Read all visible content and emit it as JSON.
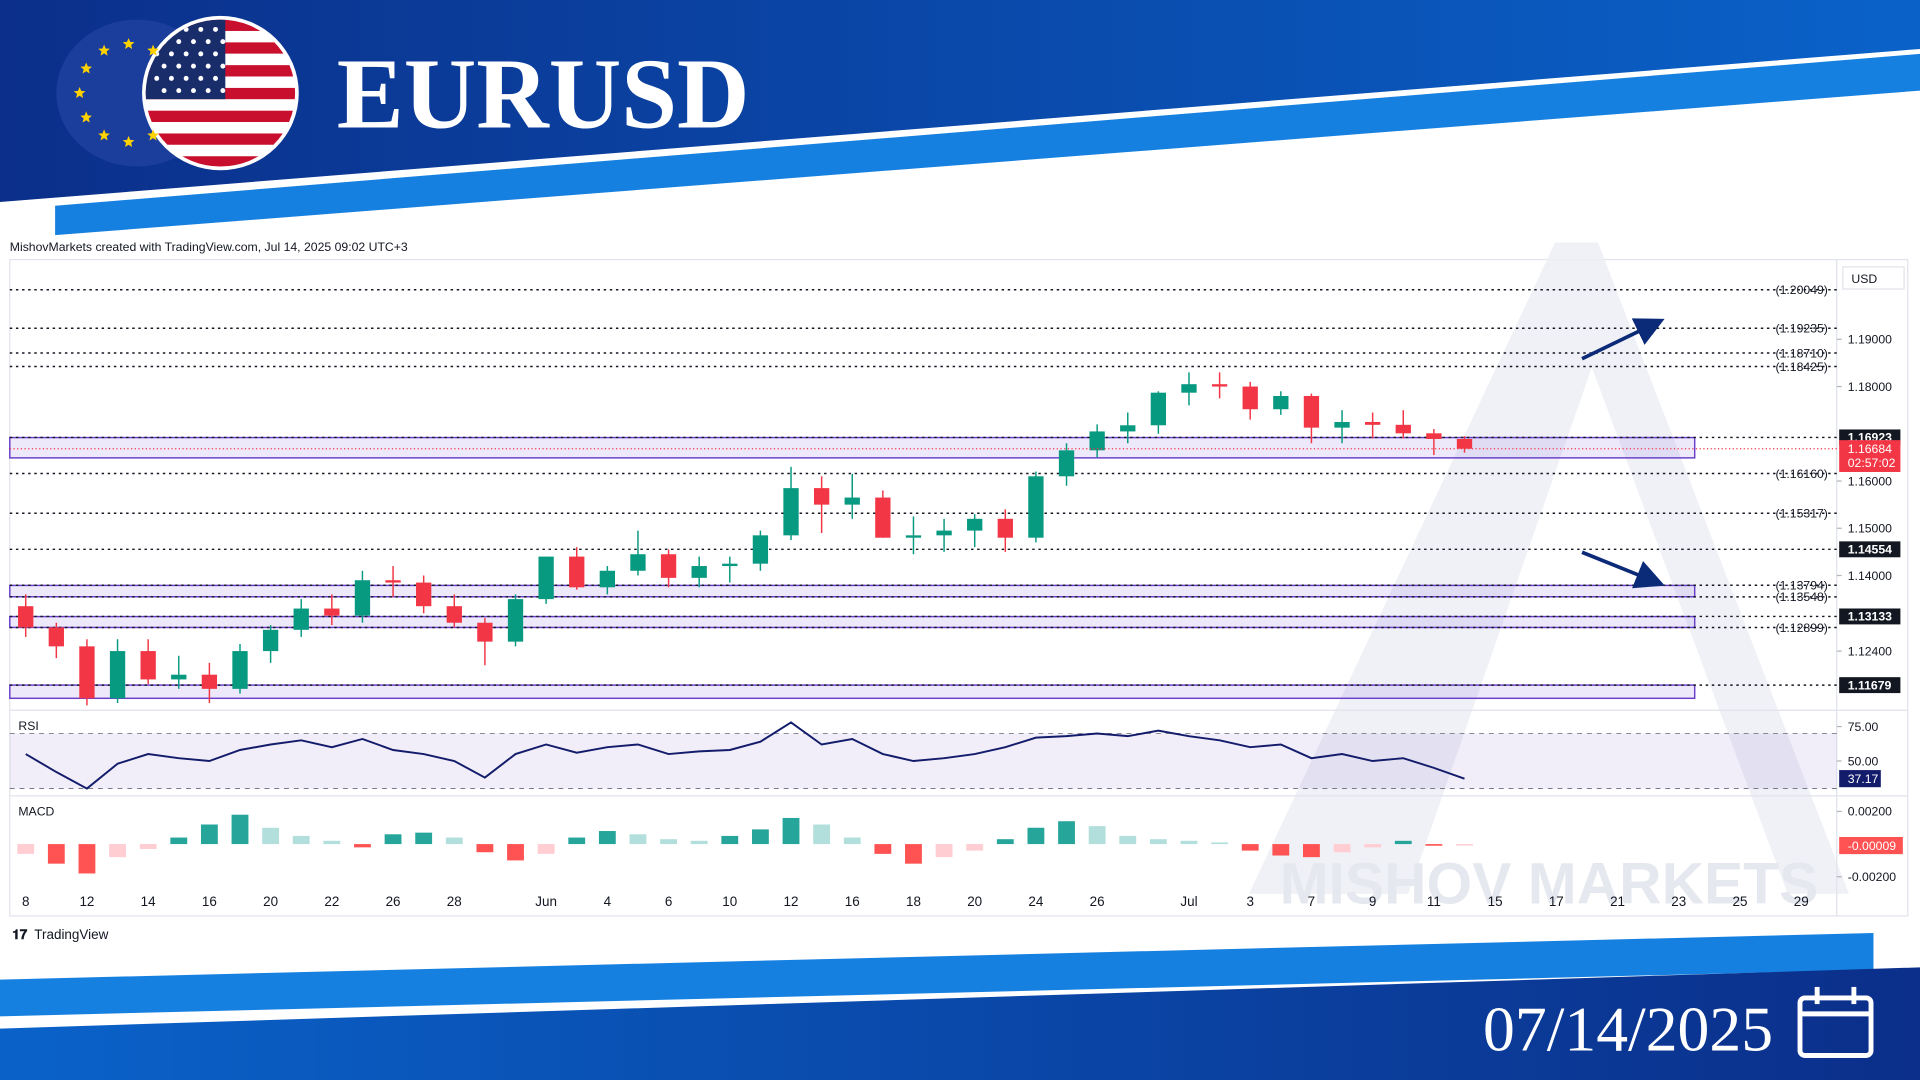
{
  "header": {
    "title": "EURUSD"
  },
  "attribution": "MishovMarkets created with TradingView.com, Jul 14, 2025 09:02 UTC+3",
  "watermark": "MISHOV MARKETS",
  "brand": "TradingView",
  "date": "07/14/2025",
  "chart_data": [
    {
      "type": "candlestick",
      "currency": "USD",
      "x": [
        0,
        1,
        2,
        3,
        4,
        5,
        6,
        7,
        8,
        9,
        10,
        11,
        12,
        13,
        14,
        15,
        16,
        17,
        18,
        19,
        20,
        21,
        22,
        23,
        24,
        25,
        26,
        27,
        28,
        29,
        30,
        31,
        32,
        33,
        34,
        35,
        36,
        37,
        38,
        39,
        40,
        41,
        42,
        43,
        44,
        45,
        46,
        47
      ],
      "open": [
        1.1335,
        1.129,
        1.125,
        1.114,
        1.124,
        1.118,
        1.119,
        1.116,
        1.124,
        1.1285,
        1.133,
        1.1315,
        1.139,
        1.1385,
        1.1335,
        1.13,
        1.126,
        1.135,
        1.144,
        1.1375,
        1.141,
        1.1445,
        1.1395,
        1.142,
        1.1425,
        1.1485,
        1.1585,
        1.155,
        1.1565,
        1.148,
        1.1485,
        1.1495,
        1.152,
        1.148,
        1.161,
        1.1665,
        1.1705,
        1.1718,
        1.1787,
        1.1805,
        1.18,
        1.1752,
        1.178,
        1.1713,
        1.1725,
        1.1719,
        1.1701,
        1.1689
      ],
      "high": [
        1.136,
        1.13,
        1.1265,
        1.1265,
        1.1265,
        1.123,
        1.1215,
        1.1255,
        1.1295,
        1.135,
        1.136,
        1.141,
        1.142,
        1.14,
        1.136,
        1.131,
        1.136,
        1.144,
        1.146,
        1.142,
        1.1495,
        1.1455,
        1.144,
        1.144,
        1.1495,
        1.163,
        1.161,
        1.1615,
        1.158,
        1.1525,
        1.152,
        1.153,
        1.154,
        1.162,
        1.168,
        1.172,
        1.1745,
        1.179,
        1.183,
        1.183,
        1.181,
        1.179,
        1.1785,
        1.175,
        1.1745,
        1.175,
        1.171,
        1.1695
      ],
      "low": [
        1.127,
        1.1225,
        1.1125,
        1.113,
        1.117,
        1.116,
        1.113,
        1.115,
        1.1215,
        1.127,
        1.1295,
        1.13,
        1.1355,
        1.132,
        1.129,
        1.121,
        1.125,
        1.134,
        1.137,
        1.136,
        1.14,
        1.1375,
        1.1375,
        1.1385,
        1.141,
        1.1475,
        1.149,
        1.152,
        1.148,
        1.1445,
        1.145,
        1.146,
        1.145,
        1.147,
        1.159,
        1.165,
        1.168,
        1.17,
        1.176,
        1.1775,
        1.173,
        1.174,
        1.168,
        1.168,
        1.169,
        1.169,
        1.1655,
        1.166
      ],
      "close": [
        1.129,
        1.125,
        1.114,
        1.124,
        1.118,
        1.119,
        1.116,
        1.124,
        1.1285,
        1.133,
        1.1315,
        1.139,
        1.1385,
        1.1335,
        1.13,
        1.126,
        1.135,
        1.144,
        1.1375,
        1.141,
        1.1445,
        1.1395,
        1.142,
        1.1425,
        1.1485,
        1.1585,
        1.155,
        1.1565,
        1.148,
        1.1485,
        1.1495,
        1.152,
        1.148,
        1.161,
        1.1665,
        1.1705,
        1.1718,
        1.1787,
        1.1805,
        1.18,
        1.1752,
        1.178,
        1.1713,
        1.1725,
        1.1719,
        1.1701,
        1.1689,
        1.16684
      ],
      "up_color": "#089981",
      "down_color": "#f23645",
      "xlim": [
        -0.52,
        59.16
      ],
      "xticks": [
        {
          "value": 0,
          "label": "8"
        },
        {
          "value": 2,
          "label": "12"
        },
        {
          "value": 4,
          "label": "14"
        },
        {
          "value": 6,
          "label": "16"
        },
        {
          "value": 8,
          "label": "20"
        },
        {
          "value": 10,
          "label": "22"
        },
        {
          "value": 12,
          "label": "26"
        },
        {
          "value": 14,
          "label": "28"
        },
        {
          "value": 17,
          "label": "Jun"
        },
        {
          "value": 19,
          "label": "4"
        },
        {
          "value": 21,
          "label": "6"
        },
        {
          "value": 23,
          "label": "10"
        },
        {
          "value": 25,
          "label": "12"
        },
        {
          "value": 27,
          "label": "16"
        },
        {
          "value": 29,
          "label": "18"
        },
        {
          "value": 31,
          "label": "20"
        },
        {
          "value": 33,
          "label": "24"
        },
        {
          "value": 35,
          "label": "26"
        },
        {
          "value": 38,
          "label": "Jul"
        },
        {
          "value": 40,
          "label": "3"
        },
        {
          "value": 42,
          "label": "7"
        },
        {
          "value": 44,
          "label": "9"
        },
        {
          "value": 46,
          "label": "11"
        },
        {
          "value": 48,
          "label": "15"
        },
        {
          "value": 50,
          "label": "17"
        },
        {
          "value": 52,
          "label": "21"
        },
        {
          "value": 54,
          "label": "23"
        },
        {
          "value": 56,
          "label": "25"
        },
        {
          "value": 58,
          "label": "29"
        }
      ],
      "ylim": [
        1.112,
        1.2061
      ],
      "yticks": [
        {
          "value": 1.124,
          "label": "1.12400"
        },
        {
          "value": 1.14,
          "label": "1.14000"
        },
        {
          "value": 1.15,
          "label": "1.15000"
        },
        {
          "value": 1.16,
          "label": "1.16000"
        },
        {
          "value": 1.18,
          "label": "1.18000"
        },
        {
          "value": 1.19,
          "label": "1.19000"
        }
      ],
      "levels": [
        {
          "value": 1.20049,
          "label": "(1.20049)"
        },
        {
          "value": 1.19235,
          "label": "(1.19235)"
        },
        {
          "value": 1.1871,
          "label": "(1.18710)"
        },
        {
          "value": 1.18425,
          "label": "(1.18425)"
        },
        {
          "value": 1.1616,
          "label": "(1.16160)"
        },
        {
          "value": 1.15317,
          "label": "(1.15317)"
        },
        {
          "value": 1.13794,
          "label": "(1.13794)"
        },
        {
          "value": 1.13548,
          "label": "(1.13548)"
        },
        {
          "value": 1.12899,
          "label": "(1.12899)"
        }
      ],
      "key_levels": [
        1.16923,
        1.14554,
        1.13133,
        1.11679
      ],
      "zones": [
        [
          1.1649,
          1.1692
        ],
        [
          1.1355,
          1.1379
        ],
        [
          1.129,
          1.1313
        ],
        [
          1.114,
          1.1168
        ]
      ],
      "last_price": 1.16684,
      "countdown": "02:57:02"
    },
    {
      "type": "line",
      "title": "RSI",
      "color": "#131c6b",
      "values": [
        55,
        42,
        30,
        48,
        55,
        52,
        50,
        58,
        62,
        65,
        60,
        66,
        58,
        55,
        50,
        38,
        55,
        62,
        56,
        60,
        62,
        55,
        57,
        58,
        64,
        78,
        62,
        66,
        55,
        50,
        52,
        55,
        60,
        67,
        68,
        70,
        68,
        72,
        68,
        65,
        60,
        62,
        52,
        55,
        50,
        52,
        45,
        37.17
      ],
      "band": [
        30,
        70
      ],
      "ylim": [
        26.4,
        85.1
      ],
      "yticks": [
        {
          "value": 75,
          "label": "75.00"
        },
        {
          "value": 50,
          "label": "50.00"
        }
      ]
    },
    {
      "type": "bar",
      "title": "MACD",
      "values": [
        -0.0006,
        -0.0012,
        -0.0018,
        -0.0008,
        -0.0003,
        0.0004,
        0.0012,
        0.0018,
        0.001,
        0.0005,
        0.0002,
        -0.0002,
        0.0006,
        0.0007,
        0.0004,
        -0.0005,
        -0.001,
        -0.0006,
        0.0004,
        0.0008,
        0.0006,
        0.0003,
        0.0002,
        0.0005,
        0.0009,
        0.0016,
        0.0012,
        0.0004,
        -0.0006,
        -0.0012,
        -0.0008,
        -0.0004,
        0.0003,
        0.001,
        0.0014,
        0.0011,
        0.0005,
        0.0003,
        0.0002,
        0.0001,
        -0.0004,
        -0.0007,
        -0.0008,
        -0.0005,
        -0.0002,
        0.0002,
        -0.0001,
        -9e-05
      ],
      "colors": [
        "#26a69a",
        "#b2dfdb",
        "#ff5252",
        "#ffcdd2"
      ],
      "ylim": [
        -0.0029,
        0.0028
      ],
      "yticks": [
        {
          "value": 0.002,
          "label": "0.00200"
        },
        {
          "value": -0.002,
          "label": "-0.00200"
        }
      ]
    }
  ]
}
